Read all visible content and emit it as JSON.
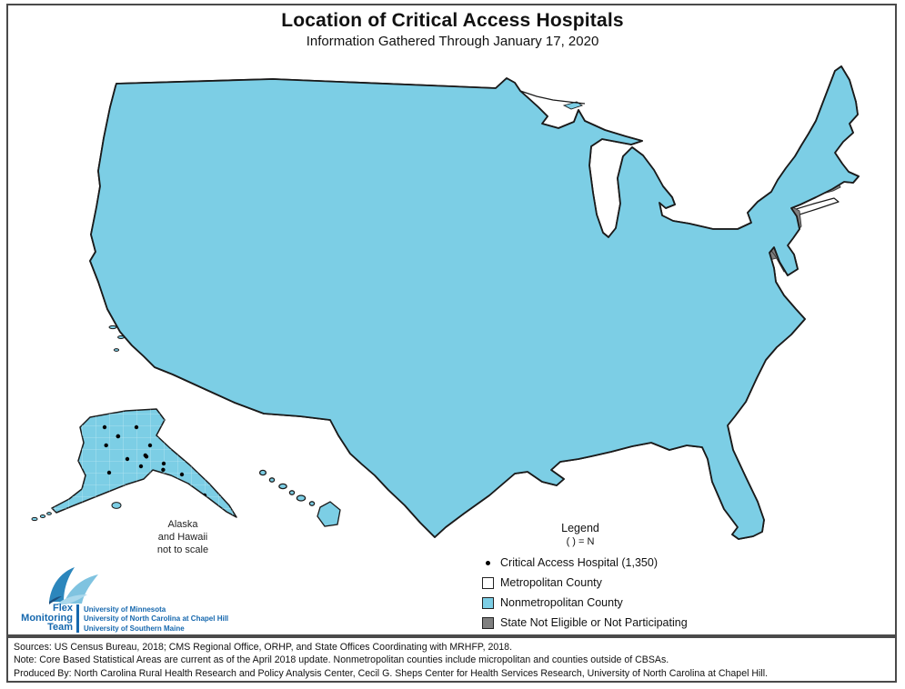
{
  "title": "Location of Critical Access Hospitals",
  "subtitle": "Information Gathered Through January 17, 2020",
  "map_note": {
    "line1": "Alaska",
    "line2": "and Hawaii",
    "line3": "not to scale"
  },
  "legend": {
    "heading": "Legend",
    "subheading": "( ) = N",
    "items": [
      {
        "symbol": "dot",
        "label": "Critical Access Hospital (1,350)",
        "color": "#000000"
      },
      {
        "symbol": "square",
        "label": "Metropolitan County",
        "color": "#ffffff"
      },
      {
        "symbol": "square",
        "label": "Nonmetropolitan County",
        "color": "#7ccee5"
      },
      {
        "symbol": "square",
        "label": "State Not Eligible or Not Participating",
        "color": "#7f7f7f"
      }
    ]
  },
  "logo": {
    "name_line1": "Flex",
    "name_line2": "Monitoring",
    "name_line3": "Team",
    "affil_line1": "University of Minnesota",
    "affil_line2": "University of North Carolina at Chapel Hill",
    "affil_line3": "University of Southern Maine",
    "brand_color": "#1668ae"
  },
  "footer": {
    "line1": "Sources: US Census Bureau, 2018; CMS Regional Office, ORHP, and State Offices Coordinating with MRHFP, 2018.",
    "line2": "Note: Core Based Statistical Areas are current as of the April 2018 update. Nonmetropolitan counties include micropolitan and counties outside of CBSAs.",
    "line3": "Produced By: North Carolina Rural Health Research and Policy Analysis Center, Cecil G. Sheps Center for Health Services Research, University of North Carolina at Chapel Hill."
  },
  "map_data": {
    "hospital_total": 1350,
    "colors": {
      "nonmetro_fill": "#7ccee5",
      "metro_fill": "#ffffff",
      "not_participating_fill": "#7f7f7f",
      "dot_color": "#000000",
      "outline_color": "#1a1a1a",
      "county_line": "#c8ecf6",
      "state_line": "#ffffff"
    },
    "dot_radius": 2.2,
    "dot_regions": [
      [
        548,
        98,
        140,
        130,
        130
      ],
      [
        548,
        228,
        140,
        102,
        150
      ],
      [
        432,
        97,
        112,
        130,
        88
      ],
      [
        417,
        230,
        128,
        138,
        130
      ],
      [
        560,
        332,
        92,
        86,
        70
      ],
      [
        628,
        150,
        105,
        105,
        50
      ],
      [
        692,
        245,
        88,
        88,
        72
      ],
      [
        640,
        330,
        160,
        68,
        75
      ],
      [
        420,
        372,
        138,
        76,
        68
      ],
      [
        382,
        432,
        215,
        125,
        62
      ],
      [
        582,
        402,
        138,
        116,
        80
      ],
      [
        720,
        382,
        108,
        106,
        55
      ],
      [
        742,
        482,
        86,
        112,
        18
      ],
      [
        742,
        302,
        136,
        76,
        48
      ],
      [
        762,
        262,
        76,
        56,
        22
      ],
      [
        772,
        172,
        126,
        86,
        48
      ],
      [
        858,
        82,
        82,
        118,
        45
      ],
      [
        232,
        92,
        196,
        166,
        68
      ],
      [
        302,
        262,
        126,
        196,
        54
      ],
      [
        162,
        142,
        136,
        316,
        54
      ],
      [
        112,
        82,
        118,
        136,
        44
      ],
      [
        102,
        232,
        76,
        226,
        24
      ],
      [
        100,
        458,
        150,
        105,
        10
      ]
    ],
    "extra_dots": [
      [
        130,
        480
      ],
      [
        150,
        470
      ],
      [
        165,
        490
      ],
      [
        140,
        505
      ],
      [
        120,
        520
      ],
      [
        180,
        510
      ],
      [
        200,
        522
      ],
      [
        225,
        545
      ],
      [
        115,
        470
      ],
      [
        155,
        513
      ],
      [
        290,
        520
      ],
      [
        300,
        529
      ],
      [
        313,
        536
      ],
      [
        323,
        543
      ],
      [
        333,
        548
      ],
      [
        345,
        554
      ],
      [
        356,
        560
      ],
      [
        362,
        570
      ],
      [
        168,
        572
      ],
      [
        158,
        575
      ]
    ],
    "metro_areas": [
      [
        168,
        238,
        120,
        95
      ],
      [
        150,
        330,
        150,
        120
      ],
      [
        230,
        360,
        105,
        95
      ],
      [
        133,
        388,
        52,
        58
      ],
      [
        328,
        278,
        52,
        68
      ],
      [
        330,
        378,
        40,
        58
      ],
      [
        392,
        298,
        36,
        46
      ],
      [
        138,
        92,
        34,
        38
      ],
      [
        203,
        183,
        44,
        38
      ],
      [
        248,
        118,
        40,
        28
      ],
      [
        368,
        138,
        30,
        22
      ],
      [
        636,
        248,
        62,
        56
      ],
      [
        560,
        192,
        32,
        30
      ],
      [
        714,
        222,
        34,
        28
      ],
      [
        690,
        176,
        42,
        52
      ],
      [
        764,
        196,
        96,
        72
      ],
      [
        812,
        248,
        70,
        54
      ],
      [
        865,
        150,
        30,
        24
      ],
      [
        885,
        120,
        24,
        20
      ],
      [
        728,
        414,
        48,
        42
      ],
      [
        750,
        496,
        75,
        85
      ],
      [
        474,
        436,
        62,
        58
      ],
      [
        498,
        498,
        52,
        40
      ],
      [
        540,
        486,
        42,
        36
      ],
      [
        690,
        300,
        40,
        34
      ],
      [
        660,
        350,
        30,
        26
      ],
      [
        610,
        430,
        28,
        24
      ],
      [
        700,
        460,
        34,
        28
      ],
      [
        590,
        280,
        26,
        22
      ],
      [
        520,
        320,
        24,
        20
      ],
      [
        470,
        250,
        22,
        18
      ],
      [
        360,
        200,
        26,
        20
      ],
      [
        160,
        250,
        24,
        40
      ],
      [
        120,
        300,
        20,
        30
      ],
      [
        820,
        330,
        30,
        26
      ],
      [
        840,
        370,
        24,
        20
      ],
      [
        790,
        430,
        26,
        22
      ],
      [
        605,
        155,
        24,
        20
      ],
      [
        680,
        180,
        26,
        20
      ],
      [
        710,
        130,
        22,
        18
      ],
      [
        450,
        180,
        22,
        16
      ],
      [
        500,
        140,
        20,
        16
      ],
      [
        400,
        240,
        20,
        16
      ],
      [
        430,
        320,
        24,
        18
      ],
      [
        380,
        420,
        22,
        18
      ],
      [
        340,
        440,
        24,
        20
      ],
      [
        560,
        370,
        22,
        18
      ],
      [
        620,
        390,
        20,
        16
      ],
      [
        640,
        470,
        24,
        18
      ],
      [
        740,
        350,
        22,
        18
      ],
      [
        770,
        380,
        20,
        16
      ],
      [
        240,
        200,
        26,
        20
      ],
      [
        280,
        160,
        22,
        16
      ],
      [
        300,
        220,
        20,
        16
      ],
      [
        200,
        280,
        22,
        18
      ],
      [
        230,
        320,
        20,
        16
      ],
      [
        150,
        180,
        20,
        16
      ],
      [
        170,
        130,
        18,
        14
      ],
      [
        525,
        230,
        20,
        16
      ],
      [
        585,
        250,
        18,
        14
      ],
      [
        655,
        230,
        20,
        16
      ],
      [
        625,
        300,
        18,
        14
      ],
      [
        695,
        355,
        18,
        14
      ],
      [
        725,
        330,
        18,
        14
      ],
      [
        805,
        300,
        22,
        18
      ],
      [
        830,
        280,
        18,
        14
      ],
      [
        850,
        420,
        20,
        16
      ],
      [
        810,
        460,
        18,
        14
      ],
      [
        790,
        520,
        22,
        18
      ],
      [
        770,
        550,
        18,
        16
      ],
      [
        470,
        390,
        20,
        16
      ],
      [
        440,
        450,
        18,
        14
      ],
      [
        395,
        480,
        20,
        16
      ],
      [
        420,
        500,
        18,
        14
      ]
    ]
  }
}
